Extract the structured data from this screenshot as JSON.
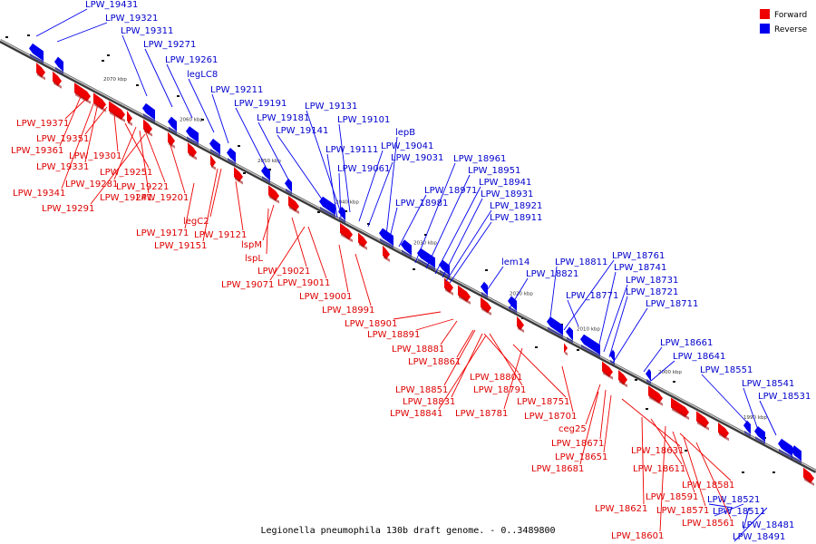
{
  "caption": "Legionella pneumophila 130b draft genome. - 0..3489800",
  "legend": [
    {
      "label": "Forward",
      "color": "#ee0000"
    },
    {
      "label": "Reverse",
      "color": "#0000ee"
    }
  ],
  "colors": {
    "forward": "#ee0000",
    "reverse": "#0000ee",
    "forward_label": "#dd0000",
    "reverse_label": "#0000cc"
  },
  "ticks": [
    "2070 kbp",
    "2060 kbp",
    "2050 kbp",
    "2040 kbp",
    "2030 kbp",
    "2020 kbp",
    "2010 kbp",
    "2000 kbp",
    "1990 kbp"
  ],
  "reverse_genes": [
    "LPW_19431",
    "LPW_19321",
    "LPW_19311",
    "LPW_19271",
    "LPW_19261",
    "legLC8",
    "LPW_19211",
    "LPW_19191",
    "LPW_19181",
    "LPW_19141",
    "LPW_19131",
    "LPW_19101",
    "lepB",
    "LPW_19111",
    "LPW_19041",
    "LPW_19031",
    "LPW_19061",
    "LPW_18961",
    "LPW_18951",
    "LPW_18971",
    "LPW_18941",
    "LPW_18981",
    "LPW_18931",
    "LPW_18921",
    "LPW_18911",
    "lem14",
    "LPW_18821",
    "LPW_18811",
    "LPW_18761",
    "LPW_18741",
    "LPW_18771",
    "LPW_18731",
    "LPW_18721",
    "LPW_18711",
    "LPW_18661",
    "LPW_18641",
    "LPW_18551",
    "LPW_18541",
    "LPW_18531",
    "LPW_18521",
    "LPW_18511",
    "LPW_18481",
    "LPW_18491"
  ],
  "forward_genes": [
    "LPW_19371",
    "LPW_19351",
    "LPW_19361",
    "LPW_19301",
    "LPW_19331",
    "LPW_19251",
    "LPW_19281",
    "LPW_19221",
    "LPW_19341",
    "LPW_19241",
    "LPW_19201",
    "LPW_19291",
    "legC2",
    "LPW_19171",
    "LPW_19121",
    "LPW_19151",
    "lspM",
    "lspL",
    "LPW_19021",
    "LPW_19071",
    "LPW_19011",
    "LPW_19001",
    "LPW_18991",
    "LPW_18901",
    "LPW_18891",
    "LPW_18881",
    "LPW_18861",
    "LPW_18801",
    "LPW_18851",
    "LPW_18791",
    "LPW_18831",
    "LPW_18751",
    "LPW_18841",
    "LPW_18781",
    "LPW_18701",
    "ceg25",
    "LPW_18671",
    "LPW_18651",
    "LPW_18631",
    "LPW_18681",
    "LPW_18611",
    "LPW_18581",
    "LPW_18591",
    "LPW_18621",
    "LPW_18571",
    "LPW_18561",
    "LPW_18601"
  ]
}
